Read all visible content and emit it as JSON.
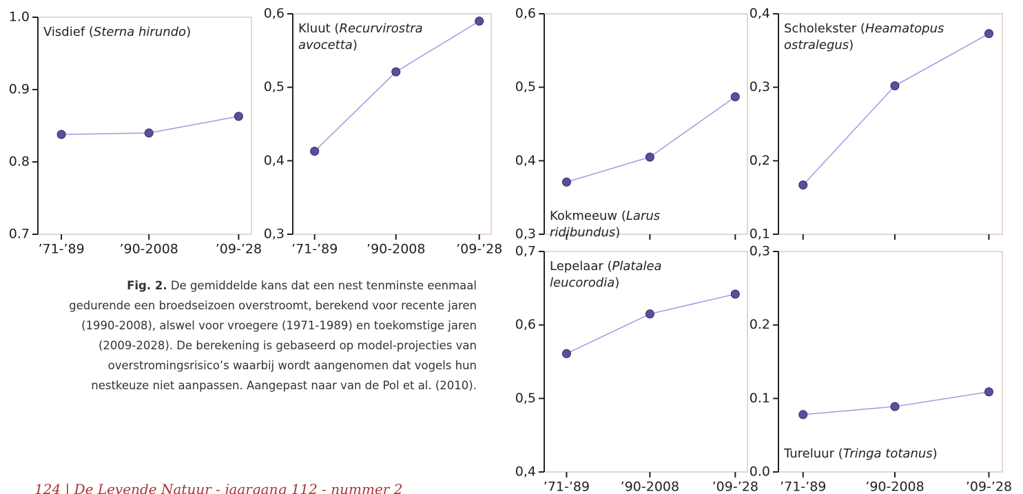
{
  "chart_data": [
    {
      "type": "line",
      "title_parts": [
        "Visdief (",
        "Sterna hirundo",
        ")"
      ],
      "title_position": "top",
      "categories": [
        "’71-’89",
        "’90-2008",
        "’09-’28"
      ],
      "values": [
        0.838,
        0.84,
        0.863
      ],
      "ylim": [
        0.7,
        1.0
      ],
      "yticks": [
        0.7,
        0.8,
        0.9,
        {
          "value": 1.0,
          "label": "1.0"
        }
      ],
      "color": "#5b4f9c",
      "line_color": "#9a9ce0"
    },
    {
      "type": "line",
      "title_parts": [
        "Kluut (",
        "Recurvirostra avocetta",
        ")"
      ],
      "title_position": "top",
      "categories": [
        "’71-’89",
        "’90-2008",
        "’09-’28"
      ],
      "values": [
        0.413,
        0.521,
        0.59
      ],
      "ylim": [
        0.3,
        0.6
      ],
      "yticks": [
        {
          "value": 0.3,
          "label": "0,3"
        },
        {
          "value": 0.4,
          "label": "0,4"
        },
        {
          "value": 0.5,
          "label": "0,5"
        },
        {
          "value": 0.6,
          "label": "0,6"
        }
      ],
      "color": "#5b4f9c",
      "line_color": "#9a9ce0"
    },
    {
      "type": "line",
      "title_parts": [
        "Kokmeeuw (",
        "Larus ridibundus",
        ")"
      ],
      "title_position": "bottom",
      "categories": [
        null,
        null,
        null
      ],
      "values": [
        0.371,
        0.405,
        0.487
      ],
      "ylim": [
        0.3,
        0.6
      ],
      "yticks": [
        {
          "value": 0.3,
          "label": "0,3"
        },
        {
          "value": 0.4,
          "label": "0,4"
        },
        {
          "value": 0.5,
          "label": "0,5"
        },
        {
          "value": 0.6,
          "label": "0,6"
        }
      ],
      "color": "#5b4f9c",
      "line_color": "#9a9ce0"
    },
    {
      "type": "line",
      "title_parts": [
        "Scholekster (",
        "Heamatopus ostralegus",
        ")"
      ],
      "title_position": "top",
      "categories": [
        null,
        null,
        null
      ],
      "values": [
        0.167,
        0.302,
        0.373
      ],
      "ylim": [
        0.1,
        0.4
      ],
      "yticks": [
        {
          "value": 0.1,
          "label": "0,1"
        },
        {
          "value": 0.2,
          "label": "0,2"
        },
        {
          "value": 0.3,
          "label": "0,3"
        },
        {
          "value": 0.4,
          "label": "0,4"
        }
      ],
      "color": "#5b4f9c",
      "line_color": "#9a9ce0"
    },
    {
      "type": "line",
      "title_parts": [
        "Lepelaar (",
        "Platalea leucorodia",
        ")"
      ],
      "title_position": "top",
      "categories": [
        "’71-’89",
        "’90-2008",
        "’09-’28"
      ],
      "values": [
        0.561,
        0.615,
        0.642
      ],
      "ylim": [
        0.4,
        0.7
      ],
      "yticks": [
        {
          "value": 0.4,
          "label": "0,4"
        },
        {
          "value": 0.5,
          "label": "0,5"
        },
        {
          "value": 0.6,
          "label": "0,6"
        },
        {
          "value": 0.7,
          "label": "0,7"
        }
      ],
      "color": "#5b4f9c",
      "line_color": "#9a9ce0"
    },
    {
      "type": "line",
      "title_parts": [
        "Tureluur (",
        "Tringa totanus",
        ")"
      ],
      "title_position": "bottom",
      "categories": [
        "’71-’89",
        "’90-2008",
        "’09-’28"
      ],
      "values": [
        0.078,
        0.089,
        0.109
      ],
      "ylim": [
        0.0,
        0.3
      ],
      "yticks": [
        {
          "value": 0.0,
          "label": "0.0"
        },
        {
          "value": 0.1,
          "label": "0.1"
        },
        {
          "value": 0.2,
          "label": "0.2"
        },
        {
          "value": 0.3,
          "label": "0,3"
        }
      ],
      "color": "#5b4f9c",
      "line_color": "#9a9ce0"
    }
  ],
  "caption": {
    "label": "Fig. 2.",
    "text": "De gemiddelde kans dat een nest tenminste eenmaal gedurende een broedseizoen overstroomt, berekend voor recente jaren (1990-2008), alswel voor vroegere (1971-1989) en toekomstige jaren (2009-2028). De berekening is gebaseerd op model-projecties van overstromingsrisico’s waarbij wordt aangenomen dat vogels hun nestkeuze niet aanpassen. Aangepast naar van de Pol et al. (2010)."
  },
  "footer": "124 | De Levende Natuur - jaargang 112 - nummer 2"
}
